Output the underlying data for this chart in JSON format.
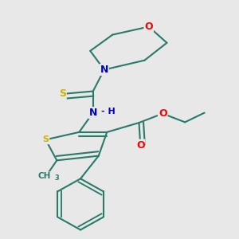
{
  "background_color": "#e8e8e8",
  "atom_colors": {
    "S": "#c8b400",
    "O": "#ff0000",
    "N": "#0000cc",
    "C": "#2a7a6a",
    "H": "#2a7a6a",
    "default": "#2a7a6a"
  },
  "bond_color": "#2a7a6a",
  "bond_width": 1.5,
  "font_size": 9
}
